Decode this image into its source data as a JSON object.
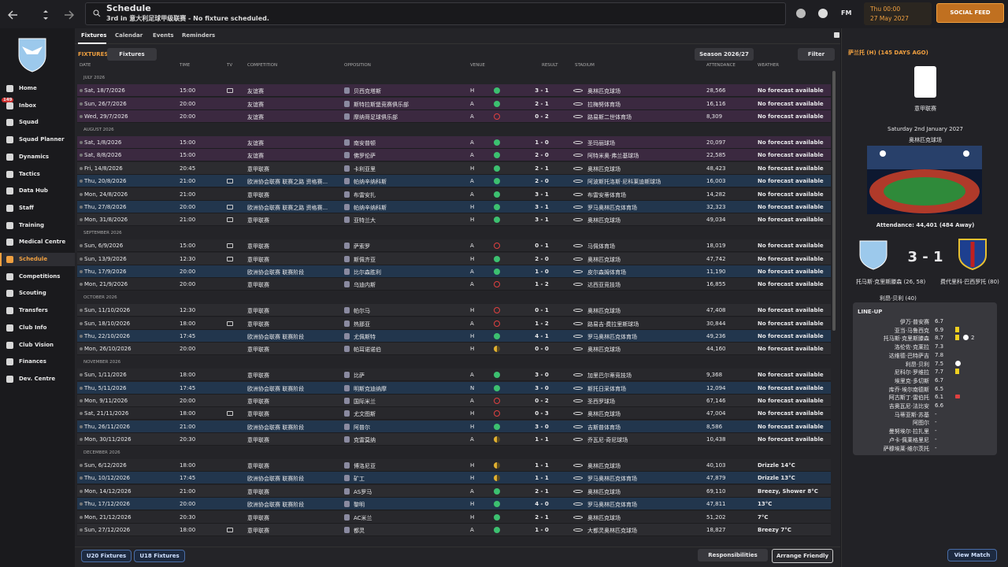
{
  "top_bar": {
    "title": "Schedule",
    "subtitle": "3rd in 意大利足球甲级联赛 - No fixture scheduled.",
    "fm": "FM",
    "time": "Thu 00:00",
    "date": "27 May 2027",
    "social_feed": "SOCIAL FEED"
  },
  "sidebar": {
    "inbox_badge": "149",
    "items": [
      {
        "label": "Home"
      },
      {
        "label": "Inbox"
      },
      {
        "label": "Squad"
      },
      {
        "label": "Squad Planner"
      },
      {
        "label": "Dynamics"
      },
      {
        "label": "Tactics"
      },
      {
        "label": "Data Hub"
      },
      {
        "label": "Staff"
      },
      {
        "label": "Training"
      },
      {
        "label": "Medical Centre"
      },
      {
        "label": "Schedule",
        "active": true
      },
      {
        "label": "Competitions"
      },
      {
        "label": "Scouting"
      },
      {
        "label": "Transfers"
      },
      {
        "label": "Club Info"
      },
      {
        "label": "Club Vision"
      },
      {
        "label": "Finances"
      },
      {
        "label": "Dev. Centre"
      }
    ]
  },
  "tabs": {
    "items": [
      "Fixtures",
      "Calendar",
      "Events",
      "Reminders"
    ]
  },
  "toolbar": {
    "heading": "FIXTURES",
    "view": "Fixtures",
    "season": "Season 2026/27",
    "filter": "Filter"
  },
  "table": {
    "columns": [
      "DATE",
      "TIME",
      "TV",
      "COMPETITION",
      "OPPOSITION",
      "VENUE",
      "RESULT",
      "STADIUM",
      "ATTENDANCE",
      "WEATHER"
    ],
    "months": [
      {
        "label": "JULY 2026",
        "rows": [
          {
            "date": "Sat, 18/7/2026",
            "time": "15:00",
            "tv": true,
            "competition": "友谊赛",
            "opposition": "贝西克塔斯",
            "venue": "H",
            "outcome": "win",
            "result": "3 - 1",
            "stadium": "奥林匹克球场",
            "attendance": "28,566",
            "weather": "No forecast available",
            "kind": "friendly"
          },
          {
            "date": "Sun, 26/7/2026",
            "time": "20:00",
            "tv": false,
            "competition": "友谊赛",
            "opposition": "斯特拉斯堡竞赛俱乐部",
            "venue": "A",
            "outcome": "win",
            "result": "2 - 1",
            "stadium": "拉梅努体育场",
            "attendance": "16,116",
            "weather": "No forecast available",
            "kind": "friendly"
          },
          {
            "date": "Wed, 29/7/2026",
            "time": "20:00",
            "tv": false,
            "competition": "友谊赛",
            "opposition": "摩纳哥足球俱乐部",
            "venue": "A",
            "outcome": "loss",
            "result": "0 - 2",
            "stadium": "路易斯二世体育场",
            "attendance": "8,309",
            "weather": "No forecast available",
            "kind": "friendly"
          }
        ]
      },
      {
        "label": "AUGUST 2026",
        "rows": [
          {
            "date": "Sat, 1/8/2026",
            "time": "15:00",
            "tv": false,
            "competition": "友谊赛",
            "opposition": "南安普顿",
            "venue": "A",
            "outcome": "win",
            "result": "1 - 0",
            "stadium": "圣玛丽球场",
            "attendance": "20,097",
            "weather": "No forecast available",
            "kind": "friendly"
          },
          {
            "date": "Sat, 8/8/2026",
            "time": "15:00",
            "tv": false,
            "competition": "友谊赛",
            "opposition": "佛罗伦萨",
            "venue": "A",
            "outcome": "win",
            "result": "2 - 0",
            "stadium": "阿特米奥·弗兰基球场",
            "attendance": "22,585",
            "weather": "No forecast available",
            "kind": "friendly"
          },
          {
            "date": "Fri, 14/8/2026",
            "time": "20:45",
            "tv": false,
            "competition": "意甲联赛",
            "opposition": "卡利亚里",
            "venue": "H",
            "outcome": "win",
            "result": "2 - 1",
            "stadium": "奥林匹克球场",
            "attendance": "48,423",
            "weather": "No forecast available",
            "kind": "league"
          },
          {
            "date": "Thu, 20/8/2026",
            "time": "21:00",
            "tv": true,
            "competition": "欧洲协会联赛 联赛之路 资格赛...",
            "opposition": "帕纳辛纳科斯",
            "venue": "A",
            "outcome": "win",
            "result": "2 - 0",
            "stadium": "阿波斯托洛斯·尼科莱迪斯球场",
            "attendance": "16,003",
            "weather": "No forecast available",
            "kind": "europe"
          },
          {
            "date": "Mon, 24/8/2026",
            "time": "21:00",
            "tv": false,
            "competition": "意甲联赛",
            "opposition": "布雷安扎",
            "venue": "A",
            "outcome": "win",
            "result": "3 - 1",
            "stadium": "布雷安蒂体育场",
            "attendance": "14,282",
            "weather": "No forecast available",
            "kind": "league"
          },
          {
            "date": "Thu, 27/8/2026",
            "time": "20:00",
            "tv": true,
            "competition": "欧洲协会联赛 联赛之路 资格赛...",
            "opposition": "帕纳辛纳科斯",
            "venue": "H",
            "outcome": "win",
            "result": "3 - 1",
            "stadium": "罗马奥林匹克体育场",
            "attendance": "32,323",
            "weather": "No forecast available",
            "kind": "europe"
          },
          {
            "date": "Mon, 31/8/2026",
            "time": "21:00",
            "tv": true,
            "competition": "意甲联赛",
            "opposition": "亚特兰大",
            "venue": "H",
            "outcome": "win",
            "result": "3 - 1",
            "stadium": "奥林匹克球场",
            "attendance": "49,034",
            "weather": "No forecast available",
            "kind": "league"
          }
        ]
      },
      {
        "label": "SEPTEMBER 2026",
        "rows": [
          {
            "date": "Sun, 6/9/2026",
            "time": "15:00",
            "tv": true,
            "competition": "意甲联赛",
            "opposition": "萨索罗",
            "venue": "A",
            "outcome": "loss",
            "result": "0 - 1",
            "stadium": "马佩体育场",
            "attendance": "18,019",
            "weather": "No forecast available",
            "kind": "league"
          },
          {
            "date": "Sun, 13/9/2026",
            "time": "12:30",
            "tv": true,
            "competition": "意甲联赛",
            "opposition": "斯佩齐亚",
            "venue": "H",
            "outcome": "win",
            "result": "2 - 0",
            "stadium": "奥林匹克球场",
            "attendance": "47,742",
            "weather": "No forecast available",
            "kind": "league"
          },
          {
            "date": "Thu, 17/9/2026",
            "time": "20:00",
            "tv": false,
            "competition": "欧洲协会联赛 联赛阶段",
            "opposition": "比尔森胜利",
            "venue": "A",
            "outcome": "win",
            "result": "1 - 0",
            "stadium": "皮尔森姆体育场",
            "attendance": "11,190",
            "weather": "No forecast available",
            "kind": "europe"
          },
          {
            "date": "Mon, 21/9/2026",
            "time": "20:00",
            "tv": false,
            "competition": "意甲联赛",
            "opposition": "乌迪内斯",
            "venue": "A",
            "outcome": "loss",
            "result": "1 - 2",
            "stadium": "达西亚竞技场",
            "attendance": "16,855",
            "weather": "No forecast available",
            "kind": "league"
          }
        ]
      },
      {
        "label": "OCTOBER 2026",
        "rows": [
          {
            "date": "Sun, 11/10/2026",
            "time": "12:30",
            "tv": false,
            "competition": "意甲联赛",
            "opposition": "帕尔马",
            "venue": "H",
            "outcome": "loss",
            "result": "0 - 1",
            "stadium": "奥林匹克球场",
            "attendance": "47,408",
            "weather": "No forecast available",
            "kind": "league"
          },
          {
            "date": "Sun, 18/10/2026",
            "time": "18:00",
            "tv": true,
            "competition": "意甲联赛",
            "opposition": "热那亚",
            "venue": "A",
            "outcome": "loss",
            "result": "1 - 2",
            "stadium": "路易吉·费拉里斯球场",
            "attendance": "30,844",
            "weather": "No forecast available",
            "kind": "league"
          },
          {
            "date": "Thu, 22/10/2026",
            "time": "17:45",
            "tv": false,
            "competition": "欧洲协会联赛 联赛阶段",
            "opposition": "尤佩斯特",
            "venue": "H",
            "outcome": "win",
            "result": "4 - 1",
            "stadium": "罗马奥林匹克体育场",
            "attendance": "49,236",
            "weather": "No forecast available",
            "kind": "europe"
          },
          {
            "date": "Mon, 26/10/2026",
            "time": "20:00",
            "tv": false,
            "competition": "意甲联赛",
            "opposition": "帕耳诺诺伯",
            "venue": "H",
            "outcome": "draw",
            "result": "0 - 0",
            "stadium": "奥林匹克球场",
            "attendance": "44,160",
            "weather": "No forecast available",
            "kind": "league"
          }
        ]
      },
      {
        "label": "NOVEMBER 2026",
        "rows": [
          {
            "date": "Sun, 1/11/2026",
            "time": "18:00",
            "tv": false,
            "competition": "意甲联赛",
            "opposition": "比萨",
            "venue": "A",
            "outcome": "win",
            "result": "3 - 0",
            "stadium": "加里巴尔蒂竞技场",
            "attendance": "9,368",
            "weather": "No forecast available",
            "kind": "league"
          },
          {
            "date": "Thu, 5/11/2026",
            "time": "17:45",
            "tv": false,
            "competition": "欧洲协会联赛 联赛阶段",
            "opposition": "明斯克迪纳摩",
            "venue": "N",
            "outcome": "win",
            "result": "3 - 0",
            "stadium": "斯托日采体育场",
            "attendance": "12,094",
            "weather": "No forecast available",
            "kind": "europe"
          },
          {
            "date": "Mon, 9/11/2026",
            "time": "20:00",
            "tv": false,
            "competition": "意甲联赛",
            "opposition": "国际米兰",
            "venue": "A",
            "outcome": "loss",
            "result": "0 - 2",
            "stadium": "圣西罗球场",
            "attendance": "67,146",
            "weather": "No forecast available",
            "kind": "league"
          },
          {
            "date": "Sat, 21/11/2026",
            "time": "18:00",
            "tv": true,
            "competition": "意甲联赛",
            "opposition": "尤文图斯",
            "venue": "H",
            "outcome": "loss",
            "result": "0 - 3",
            "stadium": "奥林匹克球场",
            "attendance": "47,004",
            "weather": "No forecast available",
            "kind": "league"
          },
          {
            "date": "Thu, 26/11/2026",
            "time": "21:00",
            "tv": false,
            "competition": "欧洲协会联赛 联赛阶段",
            "opposition": "阿普尔",
            "venue": "H",
            "outcome": "win",
            "result": "3 - 0",
            "stadium": "吉斯普体育场",
            "attendance": "8,586",
            "weather": "No forecast available",
            "kind": "europe"
          },
          {
            "date": "Mon, 30/11/2026",
            "time": "20:30",
            "tv": false,
            "competition": "意甲联赛",
            "opposition": "克雷莫纳",
            "venue": "A",
            "outcome": "draw",
            "result": "1 - 1",
            "stadium": "乔瓦尼·奇尼球场",
            "attendance": "10,438",
            "weather": "No forecast available",
            "kind": "league"
          }
        ]
      },
      {
        "label": "DECEMBER 2026",
        "rows": [
          {
            "date": "Sun, 6/12/2026",
            "time": "18:00",
            "tv": false,
            "competition": "意甲联赛",
            "opposition": "博洛尼亚",
            "venue": "H",
            "outcome": "draw",
            "result": "1 - 1",
            "stadium": "奥林匹克球场",
            "attendance": "40,103",
            "weather": "Drizzle 14°C",
            "kind": "league"
          },
          {
            "date": "Thu, 10/12/2026",
            "time": "17:45",
            "tv": false,
            "competition": "欧洲协会联赛 联赛阶段",
            "opposition": "矿工",
            "venue": "H",
            "outcome": "draw",
            "result": "1 - 1",
            "stadium": "罗马奥林匹克体育场",
            "attendance": "47,879",
            "weather": "Drizzle 13°C",
            "kind": "europe"
          },
          {
            "date": "Mon, 14/12/2026",
            "time": "21:00",
            "tv": false,
            "competition": "意甲联赛",
            "opposition": "AS罗马",
            "venue": "A",
            "outcome": "win",
            "result": "2 - 1",
            "stadium": "奥林匹克球场",
            "attendance": "69,110",
            "weather": "Breezy, Shower 8°C",
            "kind": "league"
          },
          {
            "date": "Thu, 17/12/2026",
            "time": "20:00",
            "tv": false,
            "competition": "欧洲协会联赛 联赛阶段",
            "opposition": "黎明",
            "venue": "H",
            "outcome": "win",
            "result": "4 - 0",
            "stadium": "罗马奥林匹克体育场",
            "attendance": "47,811",
            "weather": "13°C",
            "kind": "europe"
          },
          {
            "date": "Mon, 21/12/2026",
            "time": "20:30",
            "tv": false,
            "competition": "意甲联赛",
            "opposition": "AC米兰",
            "venue": "H",
            "outcome": "win",
            "result": "2 - 1",
            "stadium": "奥林匹克球场",
            "attendance": "51,202",
            "weather": "7°C",
            "kind": "league"
          },
          {
            "date": "Sun, 27/12/2026",
            "time": "18:00",
            "tv": true,
            "competition": "意甲联赛",
            "opposition": "都灵",
            "venue": "A",
            "outcome": "win",
            "result": "1 - 0",
            "stadium": "大都灵奥林匹克球场",
            "attendance": "18,827",
            "weather": "Breezy 7°C",
            "kind": "league"
          }
        ]
      }
    ]
  },
  "footer": {
    "u20": "U20 Fixtures",
    "u18": "U18 Fixtures",
    "responsibilities": "Responsibilities",
    "arrange_friendly": "Arrange Friendly",
    "view_match": "View Match"
  },
  "match_panel": {
    "header": "萨兰托 (H) (145 DAYS AGO)",
    "competition": "意甲联赛",
    "date": "Saturday 2nd January 2027",
    "stadium": "奥林匹克球场",
    "attendance": "Attendance: 44,401 (484 Away)",
    "score": "3 - 1",
    "home_scorers": [
      "托马斯·克里斯滕森 (26, 58)",
      "利昂·贝利 (40)"
    ],
    "away_scorers": [
      "费代里科·巴西罗托 (80)"
    ],
    "lineup_title": "LINE-UP",
    "lineup": [
      {
        "name": "伊万·普安赛",
        "rating": "6.7"
      },
      {
        "name": "亚当·马鲁西克",
        "rating": "6.9",
        "yellow": true
      },
      {
        "name": "托马斯·克里斯滕森",
        "rating": "8.7",
        "yellow": true,
        "goal": true,
        "goal_count": "2"
      },
      {
        "name": "洛伦佐·克莱拉",
        "rating": "7.3"
      },
      {
        "name": "达维德·巴特萨吉",
        "rating": "7.8"
      },
      {
        "name": "利昂·贝利",
        "rating": "7.5",
        "goal": true
      },
      {
        "name": "尼科尔·罗维拉",
        "rating": "7.7",
        "yellow": true
      },
      {
        "name": "埃里克·多切斯",
        "rating": "6.7"
      },
      {
        "name": "库乔·埃尔南德斯",
        "rating": "6.5"
      },
      {
        "name": "阿古斯丁·雷伯托",
        "rating": "6.1",
        "sub": true
      },
      {
        "name": "吉奥瓦尼·法比安",
        "rating": "6.6"
      },
      {
        "name": "马蒂亚斯·苏基",
        "rating": "-"
      },
      {
        "name": "阿图尔",
        "rating": "-"
      },
      {
        "name": "曼努埃尔·拉扎里",
        "rating": "-"
      },
      {
        "name": "卢卡·佩莱格里尼",
        "rating": "-"
      },
      {
        "name": "萨穆埃莱·维尔茨托",
        "rating": "-"
      }
    ]
  }
}
